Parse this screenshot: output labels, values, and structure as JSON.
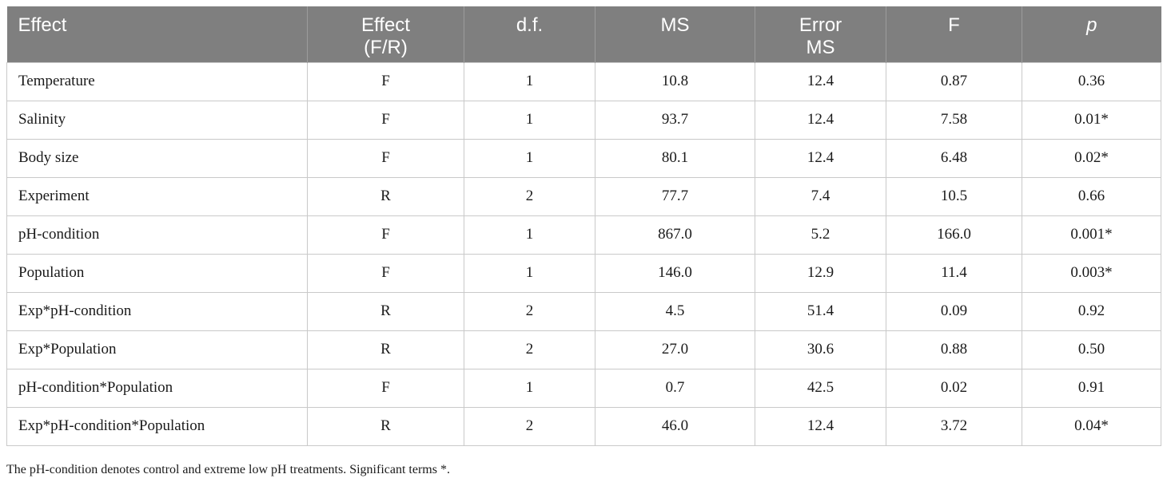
{
  "table": {
    "headers": [
      {
        "text": "Effect",
        "align": "left"
      },
      {
        "text": "Effect\n(F/R)",
        "align": "center"
      },
      {
        "text": "d.f.",
        "align": "center"
      },
      {
        "text": "MS",
        "align": "center"
      },
      {
        "text": "Error\nMS",
        "align": "center"
      },
      {
        "text": "F",
        "align": "center"
      },
      {
        "text": "p",
        "align": "center",
        "italic": true
      }
    ],
    "rows": [
      [
        "Temperature",
        "F",
        "1",
        "10.8",
        "12.4",
        "0.87",
        "0.36"
      ],
      [
        "Salinity",
        "F",
        "1",
        "93.7",
        "12.4",
        "7.58",
        "0.01*"
      ],
      [
        "Body size",
        "F",
        "1",
        "80.1",
        "12.4",
        "6.48",
        "0.02*"
      ],
      [
        "Experiment",
        "R",
        "2",
        "77.7",
        "7.4",
        "10.5",
        "0.66"
      ],
      [
        "pH-condition",
        "F",
        "1",
        "867.0",
        "5.2",
        "166.0",
        "0.001*"
      ],
      [
        "Population",
        "F",
        "1",
        "146.0",
        "12.9",
        "11.4",
        "0.003*"
      ],
      [
        "Exp*pH-condition",
        "R",
        "2",
        "4.5",
        "51.4",
        "0.09",
        "0.92"
      ],
      [
        "Exp*Population",
        "R",
        "2",
        "27.0",
        "30.6",
        "0.88",
        "0.50"
      ],
      [
        "pH-condition*Population",
        "F",
        "1",
        "0.7",
        "42.5",
        "0.02",
        "0.91"
      ],
      [
        "Exp*pH-condition*Population",
        "R",
        "2",
        "46.0",
        "12.4",
        "3.72",
        "0.04*"
      ]
    ]
  },
  "footnote": "The pH-condition denotes control and extreme low pH treatments. Significant terms *."
}
